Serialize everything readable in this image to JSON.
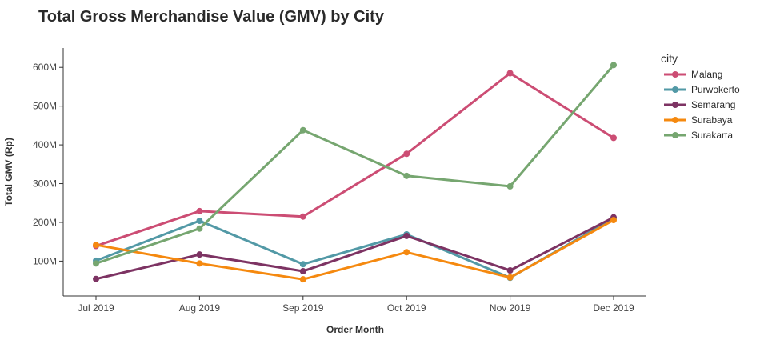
{
  "chart_data": {
    "type": "line",
    "title": "Total Gross Merchandise Value (GMV) by City",
    "xlabel": "Order Month",
    "ylabel": "Total GMV (Rp)",
    "categories": [
      "Jul 2019",
      "Aug 2019",
      "Sep 2019",
      "Oct 2019",
      "Nov 2019",
      "Dec 2019"
    ],
    "ylim": [
      10,
      650
    ],
    "yticks": [
      100,
      200,
      300,
      400,
      500,
      600
    ],
    "ytick_labels": [
      "100M",
      "200M",
      "300M",
      "400M",
      "500M",
      "600M"
    ],
    "grid": false,
    "legend_title": "city",
    "legend_position": "right",
    "series": [
      {
        "name": "Malang",
        "color": "#CC4D74",
        "values": [
          139,
          229,
          215,
          377,
          585,
          418
        ]
      },
      {
        "name": "Purwokerto",
        "color": "#5299A6",
        "values": [
          101,
          204,
          92,
          169,
          57,
          210
        ]
      },
      {
        "name": "Semarang",
        "color": "#7D3363",
        "values": [
          54,
          117,
          74,
          165,
          76,
          213
        ]
      },
      {
        "name": "Surabaya",
        "color": "#F5890F",
        "values": [
          142,
          94,
          53,
          123,
          58,
          206
        ]
      },
      {
        "name": "Surakarta",
        "color": "#76A670",
        "values": [
          94,
          184,
          438,
          320,
          293,
          606
        ]
      }
    ]
  }
}
